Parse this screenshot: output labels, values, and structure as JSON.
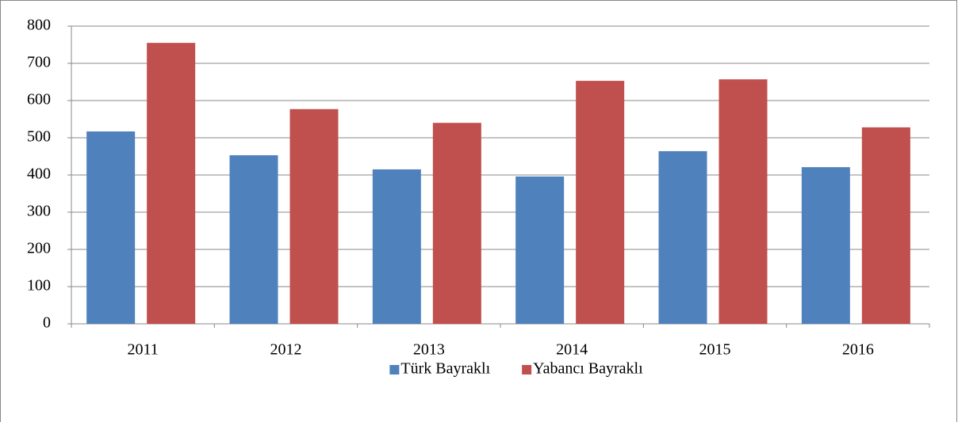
{
  "chart_data": {
    "type": "bar",
    "categories": [
      "2011",
      "2012",
      "2013",
      "2014",
      "2015",
      "2016"
    ],
    "series": [
      {
        "name": "Türk Bayraklı",
        "color": "#4f81bd",
        "values": [
          517,
          453,
          415,
          396,
          464,
          421
        ]
      },
      {
        "name": "Yabancı Bayraklı",
        "color": "#c0504d",
        "values": [
          755,
          577,
          540,
          653,
          657,
          528
        ]
      }
    ],
    "ylim": [
      0,
      800
    ],
    "yticks": [
      0,
      100,
      200,
      300,
      400,
      500,
      600,
      700,
      800
    ],
    "grid": true,
    "legend": "bottom"
  }
}
